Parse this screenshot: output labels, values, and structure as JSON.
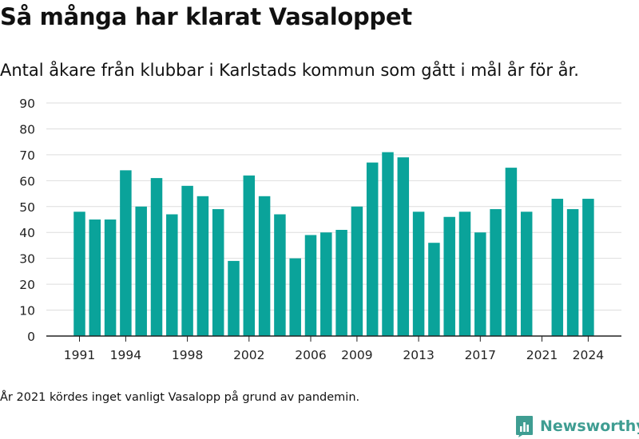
{
  "header": {
    "title": "Så många har klarat Vasaloppet",
    "subtitle": "Antal åkare från klubbar i Karlstads kommun som gått i mål år för år."
  },
  "footer": {
    "note": "År 2021 kördes inget vanligt Vasalopp på grund av pandemin.",
    "brand": "Newsworthy",
    "brand_icon": "newsworthy-logo-icon"
  },
  "colors": {
    "bar": "#0aa39a",
    "grid": "#dddddd",
    "axis": "#222222",
    "brand": "#3f9d92"
  },
  "chart_data": {
    "type": "bar",
    "categories": [
      1991,
      1992,
      1993,
      1994,
      1995,
      1996,
      1997,
      1998,
      1999,
      2000,
      2001,
      2002,
      2003,
      2004,
      2005,
      2006,
      2007,
      2008,
      2009,
      2010,
      2011,
      2012,
      2013,
      2014,
      2015,
      2016,
      2017,
      2018,
      2019,
      2020,
      2021,
      2022,
      2023,
      2024
    ],
    "values": [
      48,
      45,
      45,
      64,
      50,
      61,
      47,
      58,
      54,
      49,
      29,
      62,
      54,
      47,
      30,
      39,
      40,
      41,
      50,
      67,
      71,
      69,
      48,
      36,
      46,
      48,
      40,
      49,
      65,
      48,
      null,
      53,
      49,
      53
    ],
    "x_tick_labels": [
      "1991",
      "1994",
      "1998",
      "2002",
      "2006",
      "2009",
      "2013",
      "2017",
      "2021",
      "2024"
    ],
    "y_ticks": [
      0,
      10,
      20,
      30,
      40,
      50,
      60,
      70,
      80,
      90
    ],
    "ylim": [
      0,
      90
    ],
    "xlabel": "",
    "ylabel": "",
    "grid": true,
    "legend": "none"
  }
}
